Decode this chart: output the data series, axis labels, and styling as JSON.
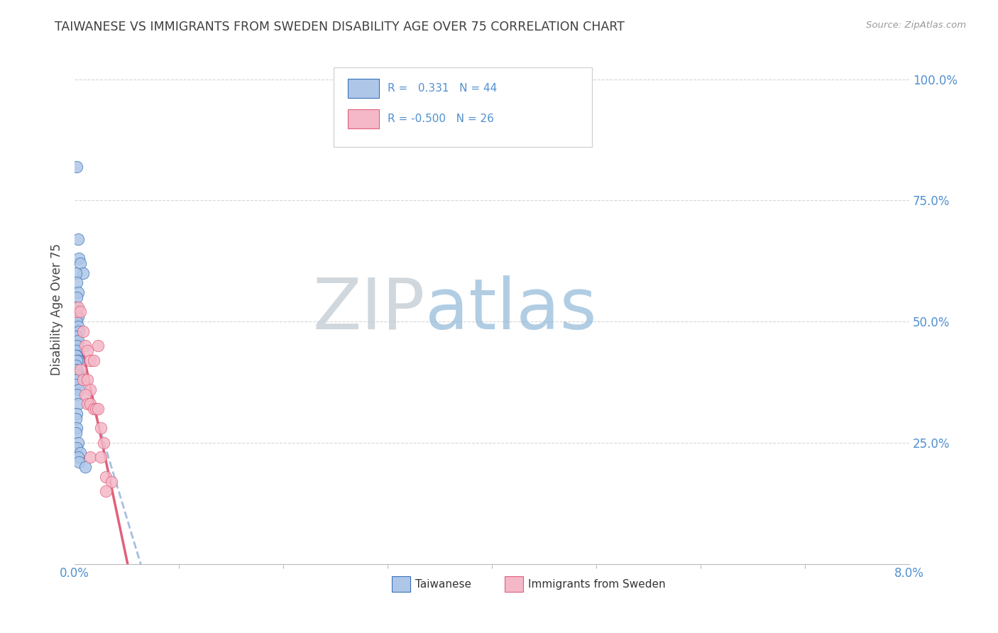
{
  "title": "TAIWANESE VS IMMIGRANTS FROM SWEDEN DISABILITY AGE OVER 75 CORRELATION CHART",
  "source": "Source: ZipAtlas.com",
  "ylabel": "Disability Age Over 75",
  "legend_label1": "Taiwanese",
  "legend_label2": "Immigrants from Sweden",
  "r1": 0.331,
  "n1": 44,
  "r2": -0.5,
  "n2": 26,
  "background_color": "#ffffff",
  "grid_color": "#cccccc",
  "color1": "#aec6e8",
  "color2": "#f4b8c8",
  "line_color1": "#3a72b8",
  "line_color2": "#e0607a",
  "title_color": "#404040",
  "watermark_zip_color": "#c8d8e8",
  "watermark_atlas_color": "#a8c8e8",
  "axis_label_color": "#5090d0",
  "xmin": 0.0,
  "xmax": 0.08,
  "ymin": 0.0,
  "ymax": 1.05,
  "tw_x": [
    0.0002,
    0.0003,
    0.0004,
    0.0005,
    0.0008,
    0.0001,
    0.0002,
    0.0003,
    0.0002,
    0.0001,
    0.0002,
    0.0003,
    0.0001,
    0.0002,
    0.0003,
    0.0004,
    0.0002,
    0.0001,
    0.0003,
    0.0002,
    0.0001,
    0.0002,
    0.0001,
    0.0003,
    0.0002,
    0.0001,
    0.0002,
    0.0001,
    0.0003,
    0.0002,
    0.0001,
    0.0004,
    0.0002,
    0.0003,
    0.0002,
    0.0001,
    0.0002,
    0.0001,
    0.0003,
    0.0002,
    0.0005,
    0.0003,
    0.0004,
    0.001
  ],
  "tw_y": [
    0.82,
    0.67,
    0.63,
    0.62,
    0.6,
    0.6,
    0.58,
    0.56,
    0.55,
    0.53,
    0.52,
    0.51,
    0.5,
    0.5,
    0.49,
    0.48,
    0.47,
    0.47,
    0.46,
    0.45,
    0.44,
    0.43,
    0.43,
    0.42,
    0.42,
    0.41,
    0.4,
    0.39,
    0.38,
    0.38,
    0.37,
    0.36,
    0.35,
    0.33,
    0.31,
    0.3,
    0.28,
    0.27,
    0.25,
    0.24,
    0.23,
    0.22,
    0.21,
    0.2
  ],
  "sw_x": [
    0.0002,
    0.0003,
    0.0005,
    0.0008,
    0.001,
    0.0012,
    0.0015,
    0.0018,
    0.0005,
    0.0008,
    0.0012,
    0.0015,
    0.001,
    0.0012,
    0.0015,
    0.0018,
    0.002,
    0.0022,
    0.0025,
    0.0028,
    0.0015,
    0.0025,
    0.003,
    0.0035,
    0.0022,
    0.003
  ],
  "sw_y": [
    0.52,
    0.53,
    0.52,
    0.48,
    0.45,
    0.44,
    0.42,
    0.42,
    0.4,
    0.38,
    0.38,
    0.36,
    0.35,
    0.33,
    0.33,
    0.32,
    0.32,
    0.32,
    0.28,
    0.25,
    0.22,
    0.22,
    0.18,
    0.17,
    0.45,
    0.15
  ]
}
